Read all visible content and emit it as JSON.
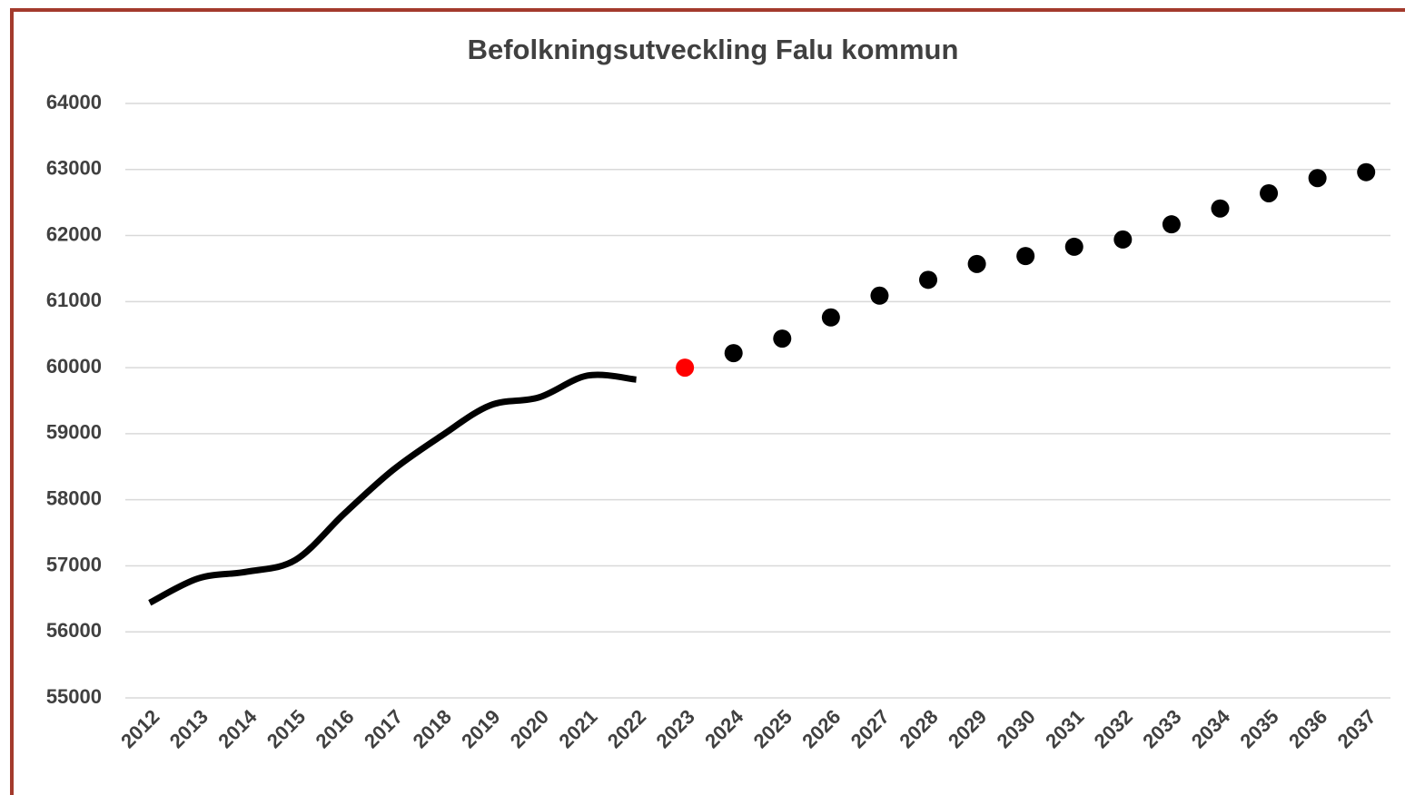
{
  "chart_data": {
    "type": "line",
    "title": "Befolkningsutveckling Falu kommun",
    "categories": [
      "2012",
      "2013",
      "2014",
      "2015",
      "2016",
      "2017",
      "2018",
      "2019",
      "2020",
      "2021",
      "2022",
      "2023",
      "2024",
      "2025",
      "2026",
      "2027",
      "2028",
      "2029",
      "2030",
      "2031",
      "2032",
      "2033",
      "2034",
      "2035",
      "2036",
      "2037"
    ],
    "series": [
      {
        "style": "line",
        "color": "#000000",
        "values": [
          56440,
          56810,
          56910,
          57090,
          57790,
          58450,
          58970,
          59430,
          59550,
          59880,
          59820,
          null,
          null,
          null,
          null,
          null,
          null,
          null,
          null,
          null,
          null,
          null,
          null,
          null,
          null,
          null
        ]
      },
      {
        "style": "markers",
        "color": "#000000",
        "colors": [
          null,
          null,
          null,
          null,
          null,
          null,
          null,
          null,
          null,
          null,
          null,
          "#ff0000",
          "#000000",
          "#000000",
          "#000000",
          "#000000",
          "#000000",
          "#000000",
          "#000000",
          "#000000",
          "#000000",
          "#000000",
          "#000000",
          "#000000",
          "#000000",
          "#000000"
        ],
        "values": [
          null,
          null,
          null,
          null,
          null,
          null,
          null,
          null,
          null,
          null,
          null,
          60000,
          60220,
          60440,
          60760,
          61090,
          61330,
          61570,
          61690,
          61830,
          61940,
          62170,
          62410,
          62640,
          62870,
          62960
        ]
      }
    ],
    "ylim": [
      55000,
      64000
    ],
    "yticks": [
      55000,
      56000,
      57000,
      58000,
      59000,
      60000,
      61000,
      62000,
      63000,
      64000
    ],
    "grid": true
  }
}
